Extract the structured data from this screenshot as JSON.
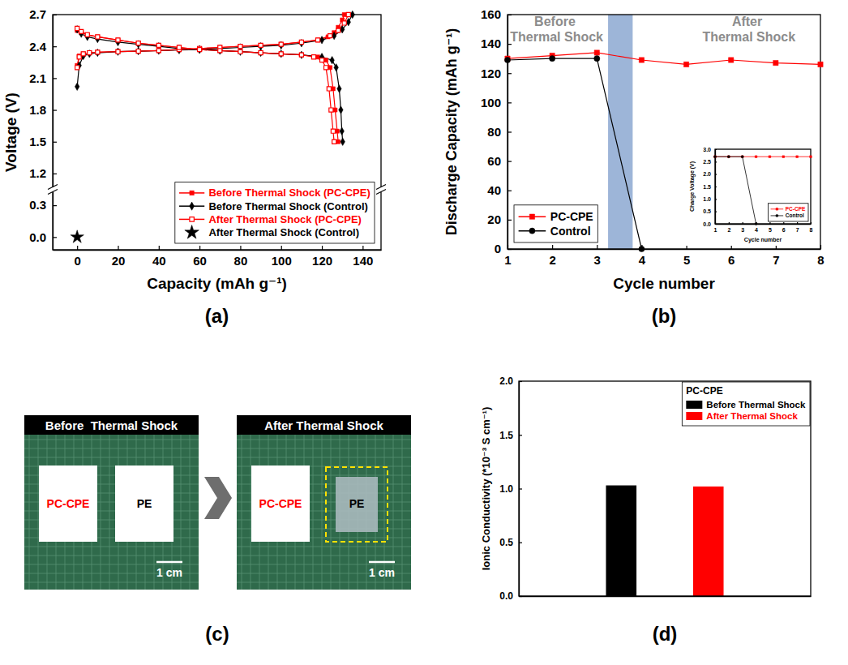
{
  "chart_data": [
    {
      "type": "line",
      "panel": "(a)",
      "xlabel": "Capacity (mAh g⁻¹)",
      "ylabel": "Voltage (V)",
      "xlim": [
        -12,
        149
      ],
      "xticks": [
        0,
        20,
        40,
        60,
        80,
        100,
        120,
        140
      ],
      "ylim": [
        -0.12,
        2.7
      ],
      "yticks": [
        {
          "value": 0.0,
          "label": "0.0"
        },
        0.3,
        1.2,
        1.5,
        1.8,
        2.1,
        2.4,
        2.7
      ],
      "grid": false,
      "legend": "lower right",
      "series": [
        {
          "name": "Before Thermal Shock (PC-CPE)",
          "color": "#ff0000",
          "marker": "square",
          "line_style": "solid",
          "x": [
            0,
            1,
            3,
            6,
            10,
            20,
            30,
            40,
            50,
            60,
            70,
            80,
            90,
            100,
            110,
            118,
            123,
            126,
            128,
            130,
            131,
            null,
            0,
            2,
            5,
            10,
            20,
            30,
            40,
            50,
            60,
            70,
            80,
            90,
            100,
            110,
            118,
            122,
            124,
            125.5,
            126.5,
            127.5,
            128
          ],
          "values": [
            2.22,
            2.31,
            2.33,
            2.34,
            2.345,
            2.35,
            2.355,
            2.36,
            2.37,
            2.38,
            2.39,
            2.4,
            2.41,
            2.42,
            2.44,
            2.46,
            2.49,
            2.53,
            2.58,
            2.65,
            2.7,
            null,
            2.55,
            2.53,
            2.51,
            2.49,
            2.46,
            2.43,
            2.41,
            2.39,
            2.37,
            2.36,
            2.35,
            2.34,
            2.33,
            2.32,
            2.3,
            2.27,
            2.2,
            2.0,
            1.8,
            1.6,
            1.5
          ]
        },
        {
          "name": "Before Thermal Shock (Control)",
          "color": "#000000",
          "marker": "diamond",
          "line_style": "solid",
          "x": [
            0,
            1,
            3,
            6,
            10,
            20,
            30,
            40,
            50,
            60,
            70,
            80,
            90,
            100,
            110,
            120,
            126,
            130,
            133,
            135,
            null,
            0,
            2,
            5,
            10,
            20,
            30,
            40,
            50,
            60,
            70,
            80,
            90,
            100,
            110,
            120,
            125,
            127,
            128.5,
            129.3,
            129.8,
            130.2
          ],
          "values": [
            2.02,
            2.22,
            2.31,
            2.33,
            2.34,
            2.35,
            2.355,
            2.36,
            2.365,
            2.37,
            2.38,
            2.39,
            2.4,
            2.41,
            2.43,
            2.46,
            2.5,
            2.56,
            2.63,
            2.7,
            null,
            2.56,
            2.52,
            2.49,
            2.47,
            2.44,
            2.42,
            2.4,
            2.38,
            2.37,
            2.36,
            2.35,
            2.34,
            2.33,
            2.32,
            2.3,
            2.27,
            2.2,
            2.0,
            1.8,
            1.6,
            1.5
          ]
        },
        {
          "name": "After Thermal Shock (PC-CPE)",
          "color": "#ff0000",
          "marker": "open-square",
          "line_style": "solid",
          "x": [
            0,
            1,
            3,
            6,
            10,
            20,
            30,
            40,
            50,
            60,
            70,
            80,
            90,
            100,
            110,
            118,
            124,
            128,
            131,
            133,
            null,
            0,
            2,
            5,
            10,
            20,
            30,
            40,
            50,
            60,
            70,
            80,
            90,
            100,
            110,
            116,
            120,
            122,
            123.5,
            124.5,
            125.5,
            126
          ],
          "values": [
            2.2,
            2.3,
            2.33,
            2.34,
            2.345,
            2.35,
            2.355,
            2.36,
            2.37,
            2.38,
            2.39,
            2.4,
            2.41,
            2.42,
            2.44,
            2.46,
            2.5,
            2.55,
            2.62,
            2.7,
            null,
            2.57,
            2.54,
            2.51,
            2.49,
            2.46,
            2.43,
            2.41,
            2.39,
            2.37,
            2.36,
            2.35,
            2.34,
            2.33,
            2.32,
            2.3,
            2.27,
            2.2,
            2.0,
            1.8,
            1.6,
            1.5
          ]
        },
        {
          "name": "After Thermal Shock (Control)",
          "color": "#000000",
          "marker": "star",
          "line_style": "none",
          "x": [
            0
          ],
          "values": [
            0.0
          ]
        }
      ]
    },
    {
      "type": "line",
      "panel": "(b)",
      "xlabel": "Cycle number",
      "ylabel": "Discharge Capacity (mAh g⁻¹)",
      "x": [
        1,
        2,
        3,
        4,
        5,
        6,
        7,
        8
      ],
      "xlim": [
        1,
        8
      ],
      "xticks": [
        1,
        2,
        3,
        4,
        5,
        6,
        7,
        8
      ],
      "ylim": [
        0,
        160
      ],
      "yticks": [
        0,
        20,
        40,
        60,
        80,
        100,
        120,
        140,
        160
      ],
      "grid": false,
      "legend": "lower left",
      "bands": [
        {
          "x": [
            3.25,
            3.8
          ],
          "color": "#9db5d8"
        }
      ],
      "annotations": [
        {
          "text": "Before Thermal Shock",
          "x": 2.1,
          "y": 152
        },
        {
          "text": "After Thermal Shock",
          "x": 6.4,
          "y": 152
        }
      ],
      "series": [
        {
          "name": "PC-CPE",
          "color": "#ff0000",
          "marker": "square",
          "line_style": "solid",
          "values": [
            130,
            132,
            134,
            129,
            126,
            129,
            127,
            126
          ]
        },
        {
          "name": "Control",
          "color": "#000000",
          "marker": "circle",
          "line_style": "solid",
          "values": [
            129,
            130,
            130,
            0,
            null,
            null,
            null,
            null
          ]
        }
      ],
      "inset": {
        "type": "line",
        "xlabel": "Cycle number",
        "ylabel": "Charge Voltage (V)",
        "x": [
          1,
          2,
          3,
          4,
          5,
          6,
          7,
          8
        ],
        "xlim": [
          1,
          8
        ],
        "xticks": [
          1,
          2,
          3,
          4,
          5,
          6,
          7,
          8
        ],
        "ylim": [
          0,
          3
        ],
        "yticks": [
          {
            "value": 0,
            "label": "0.0"
          },
          0.5,
          {
            "value": 1,
            "label": "1.0"
          },
          1.5,
          {
            "value": 2,
            "label": "2.0"
          },
          2.5,
          {
            "value": 3,
            "label": "3.0"
          }
        ],
        "grid": false,
        "legend": "lower right",
        "series": [
          {
            "name": "PC-CPE",
            "color": "#ff0000",
            "marker": "square",
            "line_style": "solid",
            "values": [
              2.7,
              2.7,
              2.7,
              2.7,
              2.7,
              2.7,
              2.7,
              2.7
            ]
          },
          {
            "name": "Control",
            "color": "#000000",
            "marker": "circle",
            "line_style": "solid",
            "values": [
              2.7,
              2.7,
              2.7,
              0.0,
              null,
              null,
              null,
              null
            ]
          }
        ]
      }
    },
    {
      "type": "bar",
      "panel": "(d)",
      "ylabel": "Ionic Conductivity (*10⁻³ S cm⁻¹)",
      "categories": [
        null
      ],
      "ylim": [
        0,
        2
      ],
      "yticks": [
        {
          "value": 0,
          "label": "0.0"
        },
        0.5,
        {
          "value": 1,
          "label": "1.0"
        },
        1.5,
        {
          "value": 2,
          "label": "2.0"
        }
      ],
      "grid": false,
      "legend": "upper right",
      "legend_title": "PC-CPE",
      "tick_labels": "y",
      "series": [
        {
          "name": "Before Thermal Shock",
          "color": "#000000",
          "values": [
            1.03
          ]
        },
        {
          "name": "After Thermal Shock",
          "color": "#ff0000",
          "values": [
            1.02
          ]
        }
      ]
    }
  ],
  "photo": {
    "panel": "(c)",
    "images": [
      {
        "title": "Before  Thermal Shock",
        "scale_bar": "1 cm",
        "samples": [
          {
            "label": "PC-CPE",
            "color": "#ff0000",
            "shrunk": false
          },
          {
            "label": "PE",
            "color": "#000000",
            "shrunk": false
          }
        ]
      },
      {
        "title": "After Thermal Shock",
        "scale_bar": "1 cm",
        "samples": [
          {
            "label": "PC-CPE",
            "color": "#ff0000",
            "shrunk": false
          },
          {
            "label": "PE",
            "color": "#000000",
            "shrunk": true
          }
        ]
      }
    ]
  }
}
